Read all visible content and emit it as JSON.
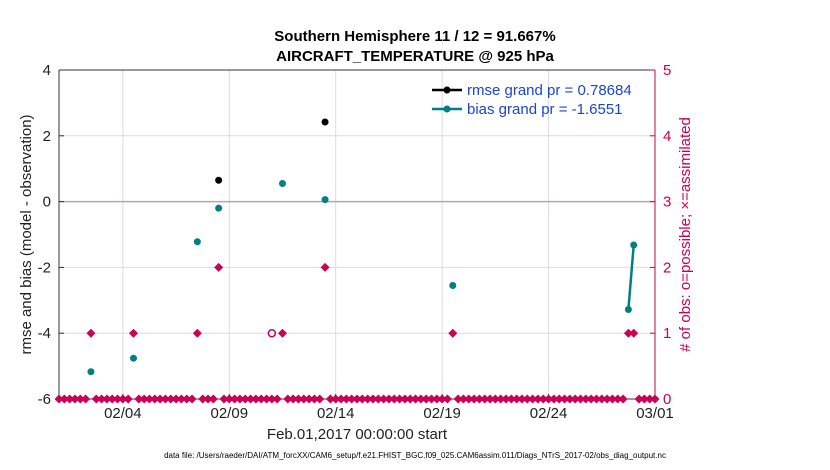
{
  "chart_data": {
    "type": "line",
    "title": "Southern Hemisphere 11 / 12 = 91.667%",
    "subtitle": "AIRCRAFT_TEMPERATURE @ 925 hPa",
    "xlabel": "Feb.01,2017 00:00:00 start",
    "ylabel": "rmse and bias (model - observation)",
    "y2label": "# of obs: o=possible; ×=assimilated",
    "footer": "data file: /Users/raeder/DAI/ATM_forcXX/CAM6_setup/f.e21.FHIST_BGC.f09_025.CAM6assim.011/Diags_NTrS_2017-02/obs_diag_output.nc",
    "xlim": [
      0,
      28
    ],
    "ylim": [
      -6,
      4
    ],
    "y2lim": [
      0,
      5
    ],
    "x_ticks": [
      {
        "x": 3,
        "label": "02/04"
      },
      {
        "x": 8,
        "label": "02/09"
      },
      {
        "x": 13,
        "label": "02/14"
      },
      {
        "x": 18,
        "label": "02/19"
      },
      {
        "x": 23,
        "label": "02/24"
      },
      {
        "x": 28,
        "label": "03/01"
      }
    ],
    "y_ticks": [
      "-6",
      "-4",
      "-2",
      "0",
      "2",
      "4"
    ],
    "y2_ticks": [
      "0",
      "1",
      "2",
      "3",
      "4",
      "5"
    ],
    "grid": true,
    "zero_line": true,
    "legend_position": "top-right",
    "series": [
      {
        "name": "rmse grand pr = 0.78684",
        "color": "#000000",
        "points": [
          [
            7.5,
            0.65
          ],
          [
            12.5,
            2.42
          ]
        ],
        "segments": []
      },
      {
        "name": "bias grand pr = -1.6551",
        "color": "#008080",
        "points": [
          [
            1.5,
            -5.17
          ],
          [
            3.5,
            -4.76
          ],
          [
            6.5,
            -1.22
          ],
          [
            7.5,
            -0.2
          ],
          [
            10.5,
            0.55
          ],
          [
            12.5,
            0.06
          ],
          [
            18.5,
            -2.55
          ],
          [
            26.75,
            -3.28
          ],
          [
            27.0,
            -1.32
          ]
        ],
        "segments": [
          [
            [
              26.75,
              -3.28
            ],
            [
              27.0,
              -1.32
            ]
          ]
        ]
      }
    ],
    "obs_color": "#cc0055",
    "obs_assimilated": {
      "x": [
        0.0,
        0.25,
        0.5,
        0.75,
        1.0,
        1.25,
        1.5,
        1.75,
        2.0,
        2.25,
        2.5,
        2.75,
        3.0,
        3.25,
        3.5,
        3.75,
        4.0,
        4.25,
        4.5,
        4.75,
        5.0,
        5.25,
        5.5,
        5.75,
        6.0,
        6.25,
        6.5,
        6.75,
        7.0,
        7.25,
        7.5,
        7.75,
        8.0,
        8.25,
        8.5,
        8.75,
        9.0,
        9.25,
        9.5,
        9.75,
        10.0,
        10.25,
        10.5,
        10.75,
        11.0,
        11.25,
        11.5,
        11.75,
        12.0,
        12.25,
        12.5,
        12.75,
        13.0,
        13.25,
        13.5,
        13.75,
        14.0,
        14.25,
        14.5,
        14.75,
        15.0,
        15.25,
        15.5,
        15.75,
        16.0,
        16.25,
        16.5,
        16.75,
        17.0,
        17.25,
        17.5,
        17.75,
        18.0,
        18.25,
        18.5,
        18.75,
        19.0,
        19.25,
        19.5,
        19.75,
        20.0,
        20.25,
        20.5,
        20.75,
        21.0,
        21.25,
        21.5,
        21.75,
        22.0,
        22.25,
        22.5,
        22.75,
        23.0,
        23.25,
        23.5,
        23.75,
        24.0,
        24.25,
        24.5,
        24.75,
        25.0,
        25.25,
        25.5,
        25.75,
        26.0,
        26.25,
        26.5,
        26.75,
        27.0,
        27.25,
        27.5,
        27.75,
        28.0
      ],
      "y": [
        0,
        0,
        0,
        0,
        0,
        0,
        1,
        0,
        0,
        0,
        0,
        0,
        0,
        0,
        1,
        0,
        0,
        0,
        0,
        0,
        0,
        0,
        0,
        0,
        0,
        0,
        1,
        0,
        0,
        0,
        2,
        0,
        0,
        0,
        0,
        0,
        0,
        0,
        0,
        0,
        0,
        0,
        1,
        0,
        0,
        0,
        0,
        0,
        0,
        0,
        2,
        0,
        0,
        0,
        0,
        0,
        0,
        0,
        0,
        0,
        0,
        0,
        0,
        0,
        0,
        0,
        0,
        0,
        0,
        0,
        0,
        0,
        0,
        0,
        1,
        0,
        0,
        0,
        0,
        0,
        0,
        0,
        0,
        0,
        0,
        0,
        0,
        0,
        0,
        0,
        0,
        0,
        0,
        0,
        0,
        0,
        0,
        0,
        0,
        0,
        0,
        0,
        0,
        0,
        0,
        0,
        0,
        1,
        1,
        0,
        0,
        0,
        0
      ]
    },
    "obs_possible_only": {
      "x": [
        10.0
      ],
      "y": [
        1
      ]
    }
  }
}
